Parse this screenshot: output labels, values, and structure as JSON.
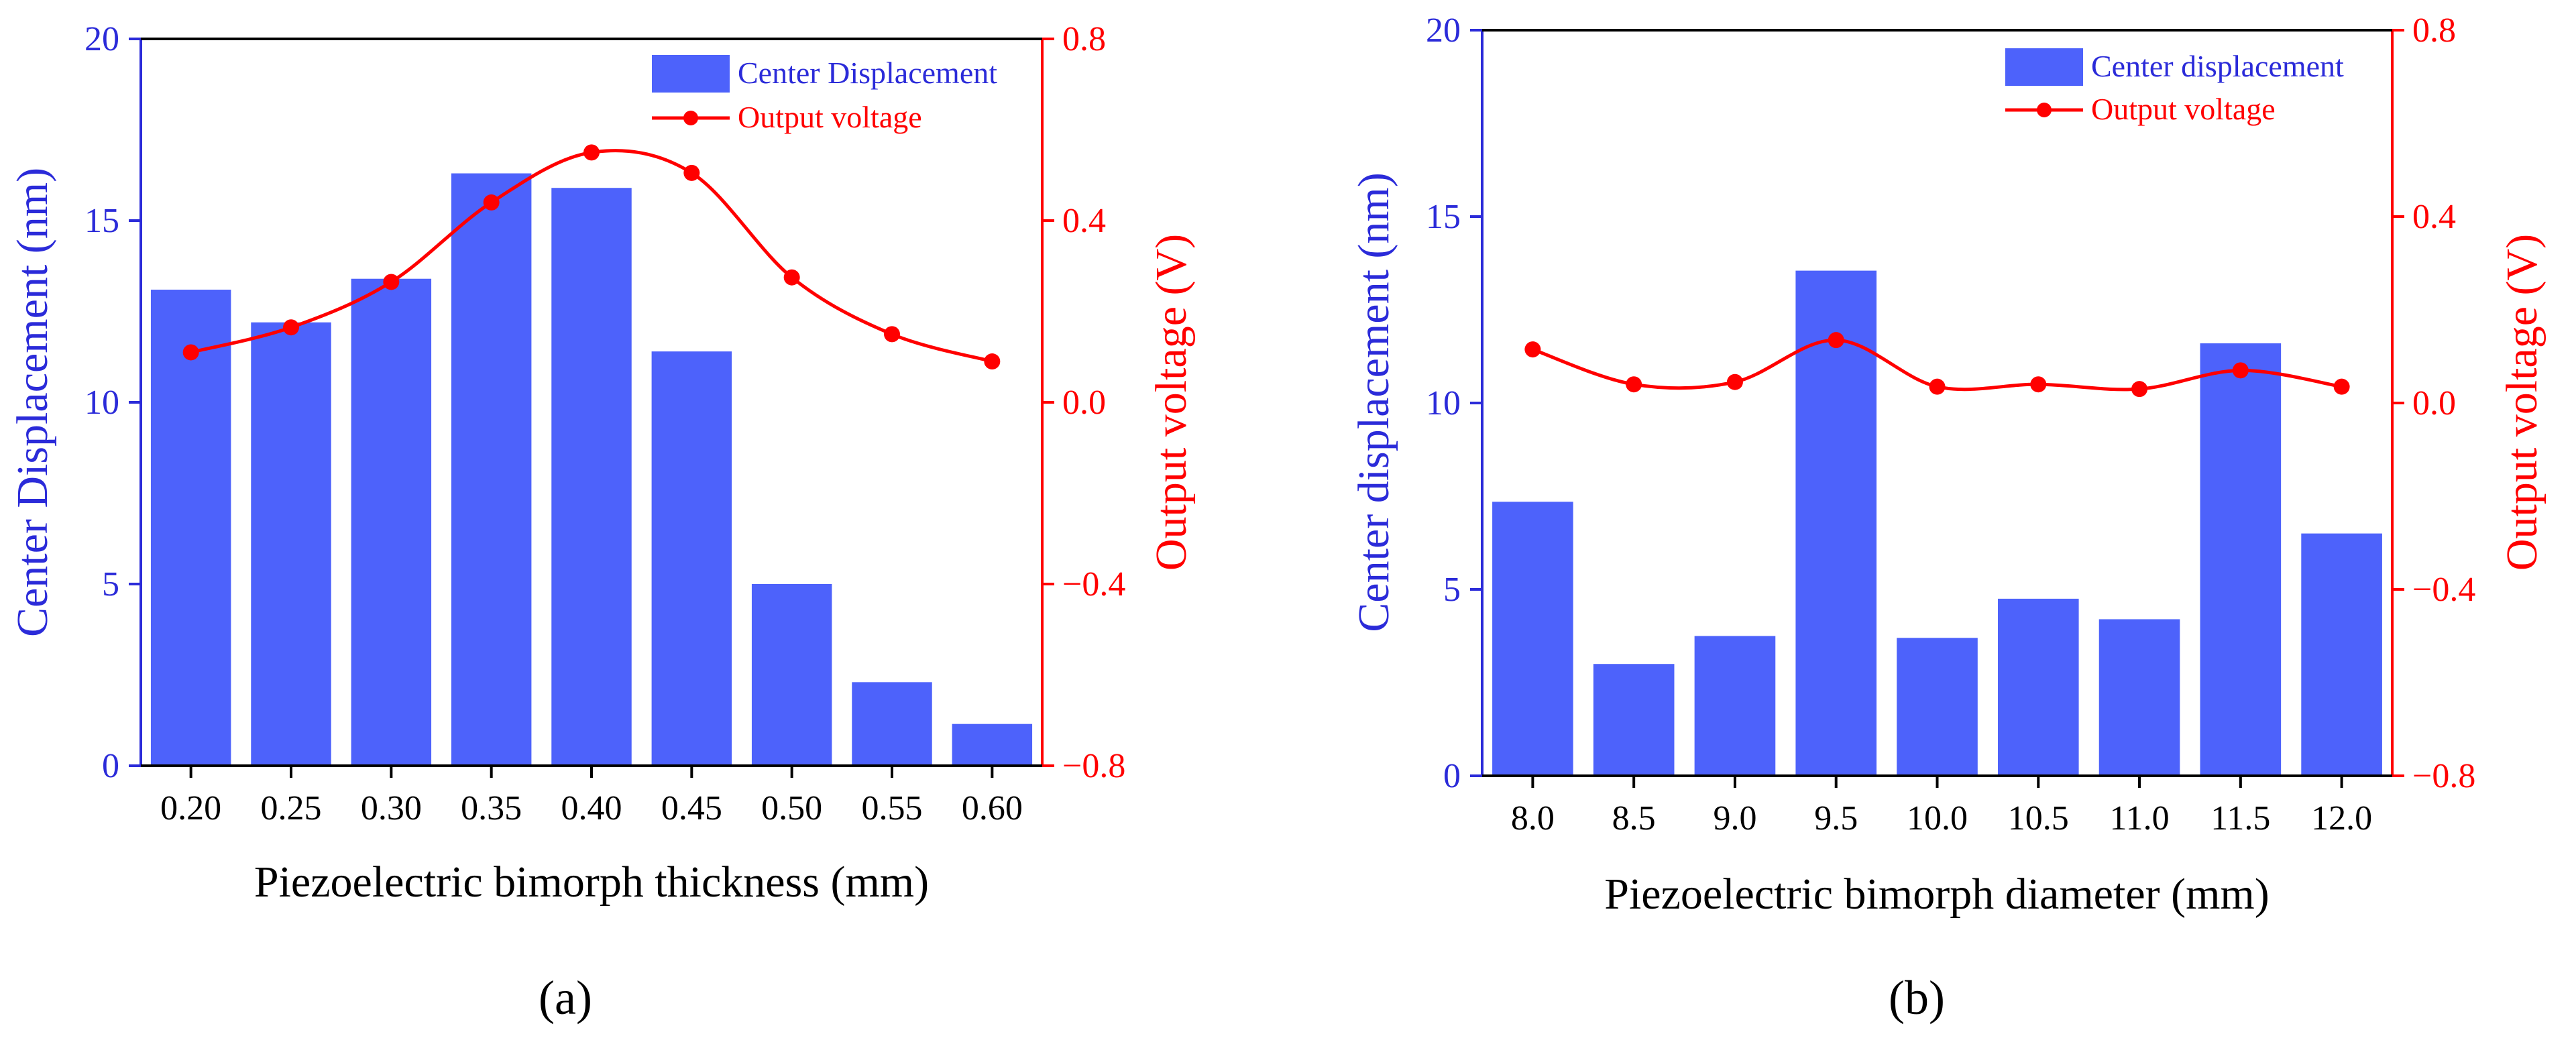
{
  "colors": {
    "bar": "#4d62fb",
    "bar_axis": "#2b2bd9",
    "line": "#ff0000",
    "axis": "#000000"
  },
  "panels": [
    {
      "label_text": "(a)",
      "chart_data": {
        "type": "bar+line",
        "categories": [
          "0.20",
          "0.25",
          "0.30",
          "0.35",
          "0.40",
          "0.45",
          "0.50",
          "0.55",
          "0.60"
        ],
        "xlabel": "Piezoelectric bimorph thickness (mm)",
        "ylabel_left": "Center Displacement (nm)",
        "ylabel_right": "Output voltage (V)",
        "ylim_left": [
          0,
          20
        ],
        "ylim_right": [
          -0.8,
          0.8
        ],
        "yticks_left": [
          "0",
          "5",
          "10",
          "15",
          "20"
        ],
        "yticks_right": [
          "−0.8",
          "−0.4",
          "0.0",
          "0.4",
          "0.8"
        ],
        "series": [
          {
            "name": "Center Displacement",
            "type": "bar",
            "axis": "left",
            "values": [
              13.1,
              12.2,
              13.4,
              16.3,
              15.9,
              11.4,
              5.0,
              2.3,
              1.15
            ]
          },
          {
            "name": "Output voltage",
            "type": "line",
            "axis": "right",
            "values": [
              0.11,
              0.165,
              0.265,
              0.44,
              0.55,
              0.505,
              0.275,
              0.15,
              0.09
            ]
          }
        ],
        "legend_position": "top-right"
      }
    },
    {
      "label_text": "(b)",
      "chart_data": {
        "type": "bar+line",
        "categories": [
          "8.0",
          "8.5",
          "9.0",
          "9.5",
          "10.0",
          "10.5",
          "11.0",
          "11.5",
          "12.0"
        ],
        "xlabel": "Piezoelectric bimorph diameter (mm)",
        "ylabel_left": "Center displacement (nm)",
        "ylabel_right": "Output voltage (V)",
        "ylim_left": [
          0,
          20
        ],
        "ylim_right": [
          -0.8,
          0.8
        ],
        "yticks_left": [
          "0",
          "5",
          "10",
          "15",
          "20"
        ],
        "yticks_right": [
          "−0.8",
          "−0.4",
          "0.0",
          "0.4",
          "0.8"
        ],
        "series": [
          {
            "name": "Center displacement",
            "type": "bar",
            "axis": "left",
            "values": [
              7.35,
              3.0,
              3.75,
              13.55,
              3.7,
              4.75,
              4.2,
              11.6,
              6.5
            ]
          },
          {
            "name": "Output voltage",
            "type": "line",
            "axis": "right",
            "values": [
              0.115,
              0.04,
              0.045,
              0.135,
              0.035,
              0.04,
              0.03,
              0.07,
              0.035
            ]
          }
        ],
        "legend_position": "top-right"
      }
    }
  ]
}
